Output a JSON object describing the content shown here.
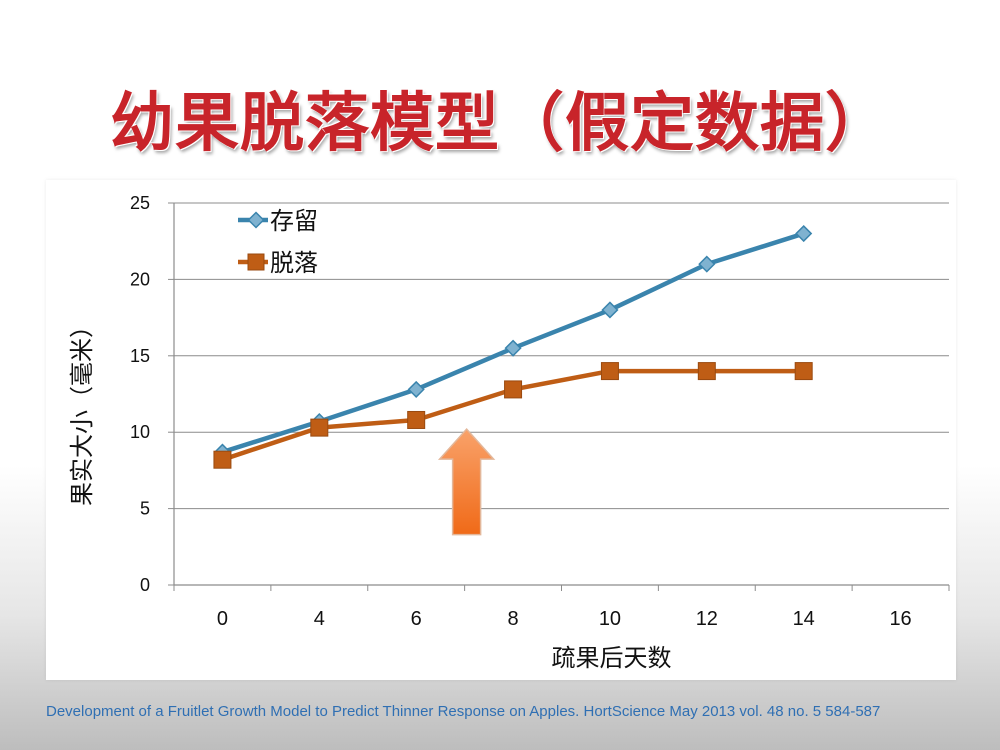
{
  "slide": {
    "title": "幼果脱落模型（假定数据）",
    "citation": "Development of a Fruitlet Growth Model to Predict Thinner Response on Apples. HortScience May 2013 vol. 48 no. 5 584-587"
  },
  "colors": {
    "title": "#c8242a",
    "series_retained": "#3a84ad",
    "series_dropped": "#bf5d15",
    "arrow_top": "#f9a26a",
    "arrow_bottom": "#f06a18",
    "gridline": "#8c8c8c",
    "citation": "#2f6fb3"
  },
  "chart_data": {
    "type": "line",
    "categories": [
      "0",
      "4",
      "6",
      "8",
      "10",
      "12",
      "14",
      "16"
    ],
    "xlabel": "疏果后天数",
    "ylabel": "果实大小（毫米）",
    "ylim": [
      0,
      25
    ],
    "yticks": [
      0,
      5,
      10,
      15,
      20,
      25
    ],
    "grid": true,
    "legend": "top-left",
    "series": [
      {
        "name": "存留",
        "marker": "diamond",
        "values": [
          8.7,
          10.7,
          12.8,
          15.5,
          18.0,
          21.0,
          23.0,
          null
        ]
      },
      {
        "name": "脱落",
        "marker": "square",
        "values": [
          8.2,
          10.3,
          10.8,
          12.8,
          14.0,
          14.0,
          14.0,
          null
        ]
      }
    ],
    "annotations": [
      {
        "type": "arrow-up",
        "between_categories": [
          "6",
          "8"
        ],
        "from_y": 3.3,
        "to_y": 10.2
      }
    ]
  }
}
